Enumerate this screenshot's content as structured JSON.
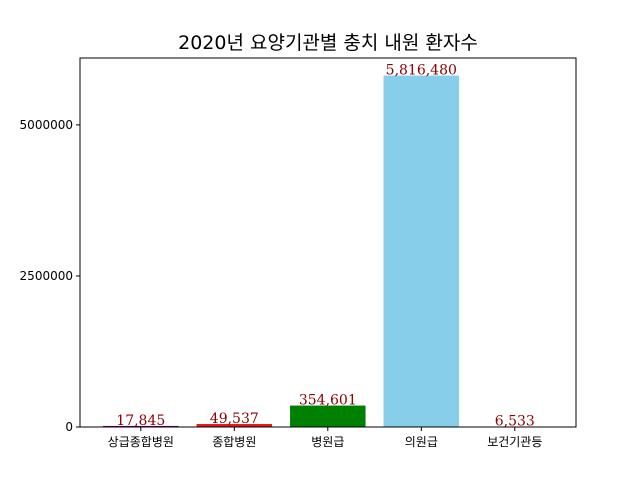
{
  "chart_data": {
    "type": "bar",
    "title": "2020년 요양기관별 충치 내원 환자수",
    "xlabel": "",
    "ylabel": "",
    "categories": [
      "상급종합병원",
      "종합병원",
      "병원급",
      "의원급",
      "보건기관등"
    ],
    "values": [
      17845,
      49537,
      354601,
      5816480,
      6533
    ],
    "value_labels": [
      "17,845",
      "49,537",
      "354,601",
      "5,816,480",
      "6,533"
    ],
    "colors": [
      "#800080",
      "#e31a1c",
      "#008000",
      "#87ceeb",
      "#ffc0cb"
    ],
    "label_color": "#8b0000",
    "ylim": [
      0,
      6107304
    ],
    "yticks": [
      0,
      2500000,
      5000000
    ],
    "ytick_labels": [
      "0",
      "2500000",
      "5000000"
    ],
    "grid": false,
    "legend": "none"
  }
}
